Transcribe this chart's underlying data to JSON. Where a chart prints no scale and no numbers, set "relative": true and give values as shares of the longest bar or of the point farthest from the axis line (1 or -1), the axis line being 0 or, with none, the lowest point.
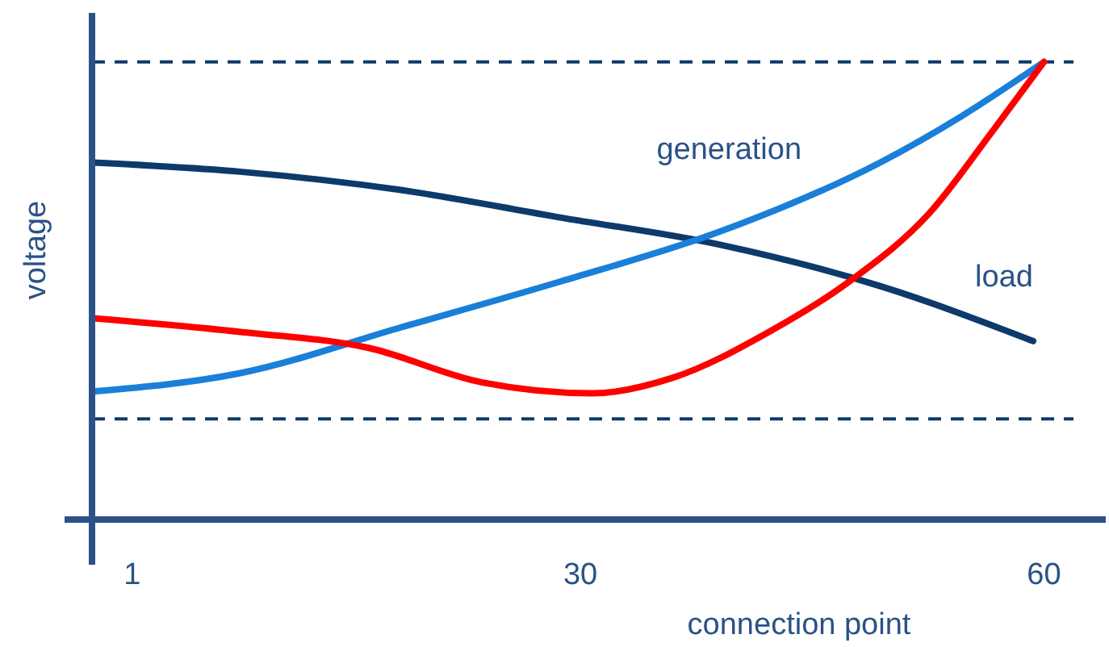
{
  "chart_data": {
    "type": "line",
    "relative": true,
    "xlabel": "connection point",
    "ylabel": "voltage",
    "xlim": [
      -1.6,
      64
    ],
    "xticks": [
      1,
      30,
      60
    ],
    "grid": false,
    "marker": "none",
    "line_style": "solid",
    "ref_lines": [
      {
        "axis": "y",
        "value": 1,
        "color": "#0d3a6b",
        "line_style": "dashed"
      },
      {
        "axis": "y",
        "value": 0.22,
        "color": "#0d3a6b",
        "line_style": "dashed"
      }
    ],
    "series": [
      {
        "name": "load",
        "color": "#0d3a6b",
        "x": [
          -1.5,
          8,
          18.4,
          28.7,
          39.1,
          49.4,
          59.3
        ],
        "values": [
          0.78,
          0.76,
          0.72,
          0.66,
          0.6,
          0.51,
          0.39
        ]
      },
      {
        "name": "generation",
        "color": "#1a7fd9",
        "x": [
          -1.5,
          8,
          18.4,
          28.7,
          39.1,
          49.4,
          54.6,
          60
        ],
        "values": [
          0.28,
          0.32,
          0.42,
          0.52,
          0.63,
          0.78,
          0.88,
          1
        ]
      },
      {
        "color": "#ff0000",
        "x": [
          -1.5,
          8,
          16.3,
          23.6,
          30.8,
          36,
          42.2,
          47.4,
          52.6,
          56.7,
          60
        ],
        "values": [
          0.44,
          0.41,
          0.375,
          0.3,
          0.276,
          0.31,
          0.41,
          0.52,
          0.67,
          0.85,
          1
        ]
      }
    ]
  }
}
